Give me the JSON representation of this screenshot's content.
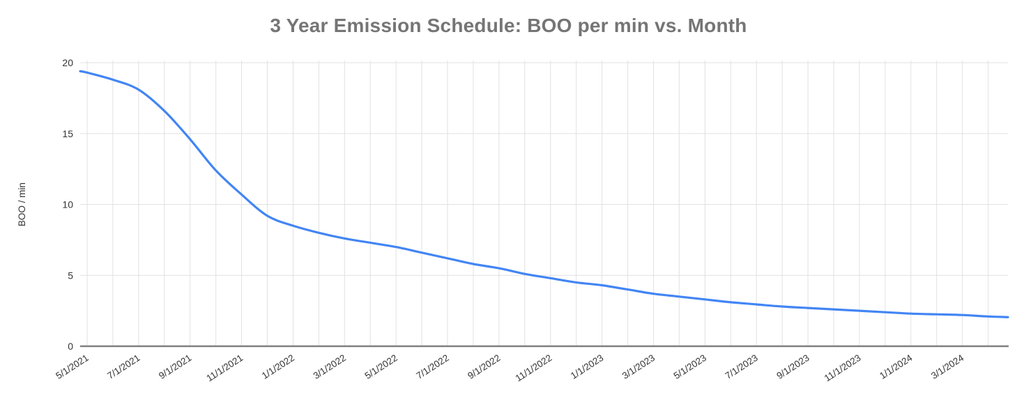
{
  "page": {
    "background_color": "#ffffff"
  },
  "chart_data": {
    "type": "line",
    "title": "3 Year Emission Schedule: BOO per min vs. Month",
    "title_color": "#757575",
    "xlabel": "",
    "ylabel": "BOO / min",
    "ylim": [
      0,
      20
    ],
    "yticks": [
      0,
      5,
      10,
      15,
      20
    ],
    "x_gridline_interval": "1 month",
    "x_tick_every_n_months": 2,
    "x_tick_labels": [
      "5/1/2021",
      "7/1/2021",
      "9/1/2021",
      "11/1/2021",
      "1/1/2022",
      "3/1/2022",
      "5/1/2022",
      "7/1/2022",
      "9/1/2022",
      "11/1/2022",
      "1/1/2023",
      "3/1/2023",
      "5/1/2023",
      "7/1/2023",
      "9/1/2023",
      "11/1/2023",
      "1/1/2024",
      "3/1/2024"
    ],
    "months": [
      "5/1/2021",
      "6/1/2021",
      "7/1/2021",
      "8/1/2021",
      "9/1/2021",
      "10/1/2021",
      "11/1/2021",
      "12/1/2021",
      "1/1/2022",
      "2/1/2022",
      "3/1/2022",
      "4/1/2022",
      "5/1/2022",
      "6/1/2022",
      "7/1/2022",
      "8/1/2022",
      "9/1/2022",
      "10/1/2022",
      "11/1/2022",
      "12/1/2022",
      "1/1/2023",
      "2/1/2023",
      "3/1/2023",
      "4/1/2023",
      "5/1/2023",
      "6/1/2023",
      "7/1/2023",
      "8/1/2023",
      "9/1/2023",
      "10/1/2023",
      "11/1/2023",
      "12/1/2023",
      "1/1/2024",
      "2/1/2024",
      "3/1/2024",
      "4/1/2024"
    ],
    "series": [
      {
        "color": "#4285f4",
        "values": [
          19.3,
          18.8,
          18.1,
          16.6,
          14.6,
          12.4,
          10.7,
          9.2,
          8.5,
          8.0,
          7.6,
          7.3,
          7.0,
          6.6,
          6.2,
          5.8,
          5.5,
          5.1,
          4.8,
          4.5,
          4.3,
          4.0,
          3.7,
          3.5,
          3.3,
          3.1,
          2.95,
          2.8,
          2.7,
          2.6,
          2.5,
          2.4,
          2.3,
          2.25,
          2.2,
          2.1
        ],
        "left_edge_value": 19.4,
        "right_edge_value": 2.05
      }
    ],
    "axis_label_color": "#333333",
    "gridline_color": "#e1e1e1",
    "baseline_color": "#808080",
    "legend_position": "none",
    "grid": "on"
  }
}
